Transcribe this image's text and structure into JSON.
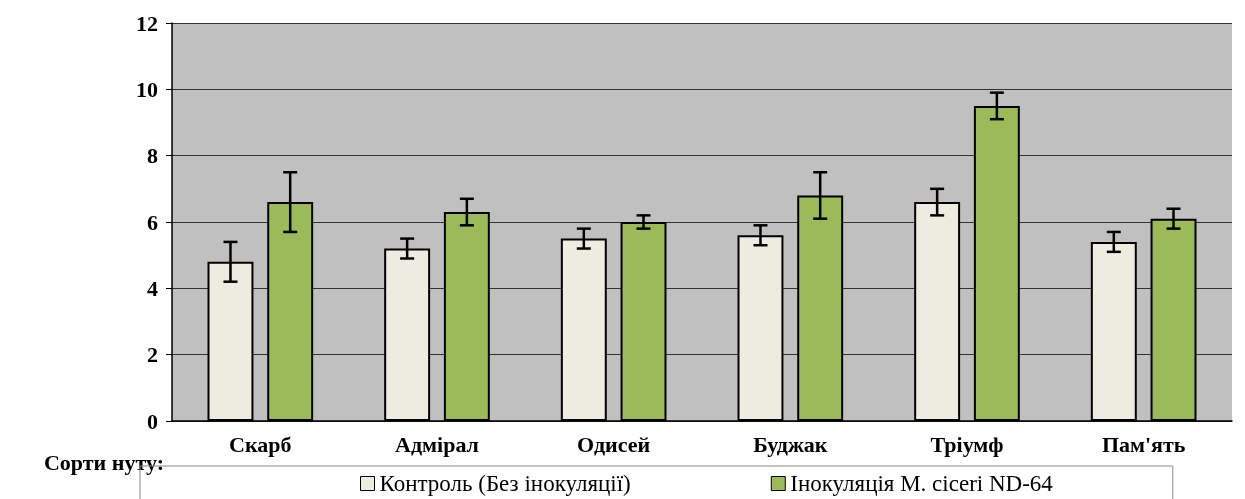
{
  "chart_data": {
    "type": "bar",
    "xlabel": "Сорти нуту:",
    "categories": [
      "Скарб",
      "Адмірал",
      "Одисей",
      "Буджак",
      "Тріумф",
      "Пам'ять"
    ],
    "series": [
      {
        "name": "Контроль (Без інокуляції)",
        "color": "#eeece1",
        "values": [
          4.8,
          5.2,
          5.5,
          5.6,
          6.6,
          5.4
        ],
        "errors": [
          0.6,
          0.3,
          0.3,
          0.3,
          0.4,
          0.3
        ]
      },
      {
        "name": "Інокуляція M. ciceri ND-64",
        "color": "#9bbb59",
        "values": [
          6.6,
          6.3,
          6.0,
          6.8,
          9.5,
          6.1
        ],
        "errors": [
          0.9,
          0.4,
          0.2,
          0.7,
          0.4,
          0.3
        ]
      }
    ],
    "ylim": [
      0,
      12
    ],
    "yticks": [
      0,
      2,
      4,
      6,
      8,
      10,
      12
    ],
    "grid": "y",
    "legend": "bottom"
  }
}
